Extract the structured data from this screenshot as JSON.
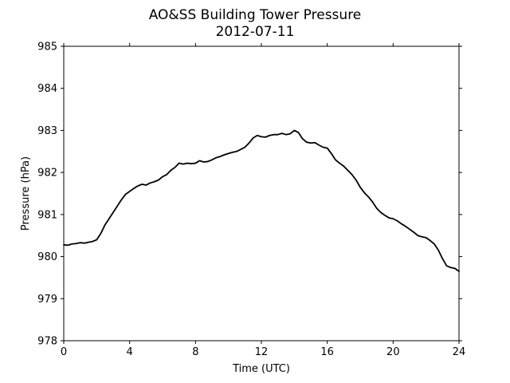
{
  "chart_data": {
    "type": "line",
    "title": "AO&SS Building Tower Pressure",
    "subtitle": "2012-07-11",
    "xlabel": "Time (UTC)",
    "ylabel": "Pressure (hPa)",
    "xlim": [
      0,
      24
    ],
    "ylim": [
      978,
      985
    ],
    "xticks": [
      0,
      4,
      8,
      12,
      16,
      20,
      24
    ],
    "yticks": [
      978,
      979,
      980,
      981,
      982,
      983,
      984,
      985
    ],
    "grid": false,
    "legend": "none",
    "series": [
      {
        "color": "#000000",
        "x": [
          0,
          0.25,
          0.5,
          0.75,
          1.0,
          1.25,
          1.5,
          1.75,
          2.0,
          2.25,
          2.5,
          2.75,
          3.0,
          3.25,
          3.5,
          3.75,
          4.0,
          4.25,
          4.5,
          4.75,
          5.0,
          5.25,
          5.5,
          5.75,
          6.0,
          6.25,
          6.5,
          6.75,
          7.0,
          7.25,
          7.5,
          7.75,
          8.0,
          8.25,
          8.5,
          8.75,
          9.0,
          9.25,
          9.5,
          9.75,
          10.0,
          10.25,
          10.5,
          10.75,
          11.0,
          11.25,
          11.5,
          11.75,
          12.0,
          12.25,
          12.5,
          12.75,
          13.0,
          13.25,
          13.5,
          13.75,
          14.0,
          14.25,
          14.5,
          14.75,
          15.0,
          15.25,
          15.5,
          15.75,
          16.0,
          16.25,
          16.5,
          16.75,
          17.0,
          17.25,
          17.5,
          17.75,
          18.0,
          18.25,
          18.5,
          18.75,
          19.0,
          19.25,
          19.5,
          19.75,
          20.0,
          20.25,
          20.5,
          20.75,
          21.0,
          21.25,
          21.5,
          21.75,
          22.0,
          22.25,
          22.5,
          22.75,
          23.0,
          23.25,
          23.5,
          23.75,
          24.0
        ],
        "values": [
          980.28,
          980.27,
          980.3,
          980.31,
          980.33,
          980.32,
          980.34,
          980.36,
          980.4,
          980.55,
          980.75,
          980.9,
          981.05,
          981.2,
          981.35,
          981.48,
          981.55,
          981.62,
          981.68,
          981.72,
          981.7,
          981.75,
          981.78,
          981.82,
          981.9,
          981.95,
          982.05,
          982.12,
          982.22,
          982.2,
          982.22,
          982.21,
          982.22,
          982.28,
          982.25,
          982.26,
          982.3,
          982.35,
          982.38,
          982.42,
          982.45,
          982.48,
          982.5,
          982.55,
          982.6,
          982.7,
          982.82,
          982.88,
          982.85,
          982.84,
          982.88,
          982.9,
          982.9,
          982.93,
          982.9,
          982.92,
          983.0,
          982.95,
          982.8,
          982.72,
          982.7,
          982.71,
          982.65,
          982.6,
          982.58,
          982.45,
          982.3,
          982.22,
          982.15,
          982.05,
          981.95,
          981.82,
          981.65,
          981.52,
          981.42,
          981.3,
          981.15,
          981.05,
          980.98,
          980.92,
          980.9,
          980.85,
          980.78,
          980.72,
          980.65,
          980.58,
          980.5,
          980.47,
          980.45,
          980.38,
          980.3,
          980.15,
          979.95,
          979.78,
          979.74,
          979.72,
          979.65
        ]
      }
    ]
  }
}
